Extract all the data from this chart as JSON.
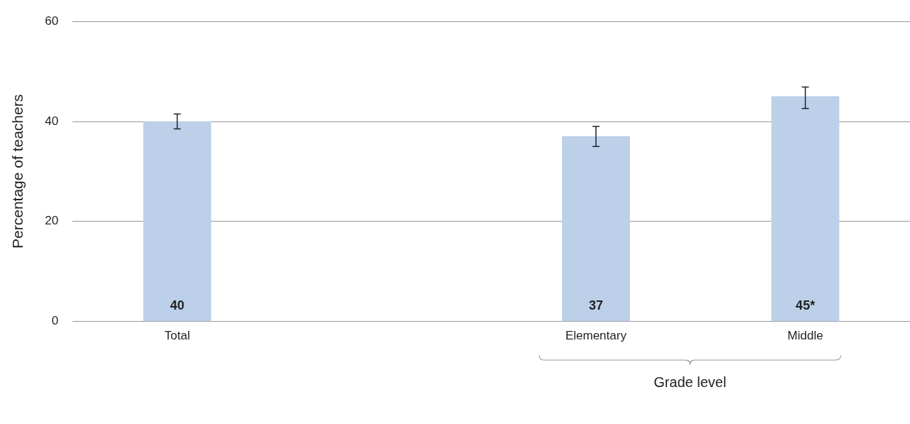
{
  "chart_data": {
    "type": "bar",
    "ylabel": "Percentage of teachers",
    "categories": [
      "Total",
      null,
      "Elementary",
      "Middle"
    ],
    "values": [
      40,
      null,
      37,
      45
    ],
    "value_labels": [
      "40",
      null,
      "37",
      "45*"
    ],
    "errors": [
      [
        38.5,
        41.5
      ],
      null,
      [
        35,
        39
      ],
      [
        42.6,
        46.9
      ]
    ],
    "color": "#bcd0ea",
    "ylim": [
      0,
      60
    ],
    "yticks": [
      0,
      20,
      40,
      60
    ],
    "grid": "y",
    "legend": false,
    "annotations": [
      "Grade level"
    ]
  }
}
